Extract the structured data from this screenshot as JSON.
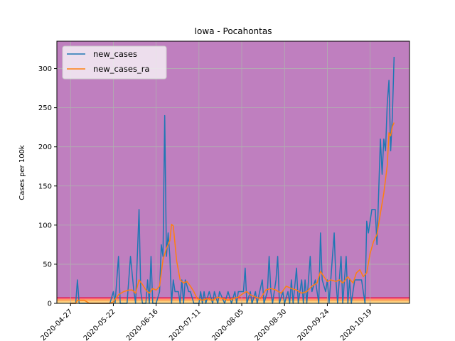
{
  "chart_data": {
    "type": "line",
    "title": "Iowa - Pocahontas",
    "xlabel": "",
    "ylabel": "Cases per 100k",
    "x_tick_labels": [
      "2020-04-27",
      "2020-05-22",
      "2020-06-16",
      "2020-07-11",
      "2020-08-05",
      "2020-08-30",
      "2020-09-24",
      "2020-10-19"
    ],
    "x_start": "2020-04-19",
    "x_end": "2020-11-11",
    "ylim": [
      0,
      335
    ],
    "y_ticks": [
      0,
      50,
      100,
      150,
      200,
      250,
      300
    ],
    "grid": true,
    "legend_position": "top-left",
    "background_color": "#bf7fbf",
    "threshold_bands": [
      {
        "from": 0,
        "to": 1,
        "color": "#ffffaa"
      },
      {
        "from": 1,
        "to": 3,
        "color": "#ffd27f"
      },
      {
        "from": 3,
        "to": 5,
        "color": "#ffaa55"
      },
      {
        "from": 5,
        "to": 7,
        "color": "#ff7f7f"
      }
    ],
    "threshold_line": {
      "value": 7,
      "color": "#e5194c"
    },
    "series": [
      {
        "name": "new_cases",
        "color": "#1f77b4",
        "points": [
          [
            "2020-04-27",
            0
          ],
          [
            "2020-04-30",
            0
          ],
          [
            "2020-05-01",
            30
          ],
          [
            "2020-05-02",
            0
          ],
          [
            "2020-05-05",
            0
          ],
          [
            "2020-05-20",
            0
          ],
          [
            "2020-05-22",
            15
          ],
          [
            "2020-05-23",
            0
          ],
          [
            "2020-05-25",
            60
          ],
          [
            "2020-05-26",
            0
          ],
          [
            "2020-05-30",
            0
          ],
          [
            "2020-06-01",
            60
          ],
          [
            "2020-06-03",
            15
          ],
          [
            "2020-06-04",
            0
          ],
          [
            "2020-06-06",
            120
          ],
          [
            "2020-06-07",
            15
          ],
          [
            "2020-06-08",
            0
          ],
          [
            "2020-06-10",
            0
          ],
          [
            "2020-06-11",
            30
          ],
          [
            "2020-06-12",
            0
          ],
          [
            "2020-06-13",
            60
          ],
          [
            "2020-06-14",
            0
          ],
          [
            "2020-06-16",
            0
          ],
          [
            "2020-06-18",
            15
          ],
          [
            "2020-06-19",
            75
          ],
          [
            "2020-06-20",
            60
          ],
          [
            "2020-06-21",
            240
          ],
          [
            "2020-06-22",
            60
          ],
          [
            "2020-06-23",
            90
          ],
          [
            "2020-06-24",
            60
          ],
          [
            "2020-06-25",
            0
          ],
          [
            "2020-06-26",
            30
          ],
          [
            "2020-06-27",
            15
          ],
          [
            "2020-06-29",
            15
          ],
          [
            "2020-06-30",
            0
          ],
          [
            "2020-07-01",
            30
          ],
          [
            "2020-07-02",
            0
          ],
          [
            "2020-07-03",
            30
          ],
          [
            "2020-07-05",
            15
          ],
          [
            "2020-07-06",
            15
          ],
          [
            "2020-07-08",
            0
          ],
          [
            "2020-07-11",
            0
          ],
          [
            "2020-07-12",
            15
          ],
          [
            "2020-07-13",
            0
          ],
          [
            "2020-07-14",
            15
          ],
          [
            "2020-07-15",
            0
          ],
          [
            "2020-07-17",
            15
          ],
          [
            "2020-07-19",
            0
          ],
          [
            "2020-07-20",
            15
          ],
          [
            "2020-07-22",
            0
          ],
          [
            "2020-07-23",
            15
          ],
          [
            "2020-07-26",
            0
          ],
          [
            "2020-07-28",
            15
          ],
          [
            "2020-07-30",
            0
          ],
          [
            "2020-08-01",
            15
          ],
          [
            "2020-08-02",
            0
          ],
          [
            "2020-08-03",
            15
          ],
          [
            "2020-08-06",
            15
          ],
          [
            "2020-08-07",
            45
          ],
          [
            "2020-08-08",
            0
          ],
          [
            "2020-08-10",
            15
          ],
          [
            "2020-08-11",
            0
          ],
          [
            "2020-08-13",
            15
          ],
          [
            "2020-08-14",
            0
          ],
          [
            "2020-08-17",
            30
          ],
          [
            "2020-08-18",
            0
          ],
          [
            "2020-08-20",
            15
          ],
          [
            "2020-08-21",
            60
          ],
          [
            "2020-08-22",
            15
          ],
          [
            "2020-08-23",
            0
          ],
          [
            "2020-08-25",
            30
          ],
          [
            "2020-08-26",
            60
          ],
          [
            "2020-08-27",
            0
          ],
          [
            "2020-08-29",
            15
          ],
          [
            "2020-08-30",
            0
          ],
          [
            "2020-09-01",
            15
          ],
          [
            "2020-09-02",
            0
          ],
          [
            "2020-09-03",
            30
          ],
          [
            "2020-09-04",
            0
          ],
          [
            "2020-09-06",
            45
          ],
          [
            "2020-09-07",
            0
          ],
          [
            "2020-09-09",
            30
          ],
          [
            "2020-09-10",
            0
          ],
          [
            "2020-09-11",
            30
          ],
          [
            "2020-09-12",
            0
          ],
          [
            "2020-09-14",
            60
          ],
          [
            "2020-09-15",
            15
          ],
          [
            "2020-09-17",
            30
          ],
          [
            "2020-09-19",
            0
          ],
          [
            "2020-09-20",
            90
          ],
          [
            "2020-09-21",
            30
          ],
          [
            "2020-09-23",
            15
          ],
          [
            "2020-09-24",
            30
          ],
          [
            "2020-09-25",
            0
          ],
          [
            "2020-09-28",
            90
          ],
          [
            "2020-09-29",
            30
          ],
          [
            "2020-09-30",
            0
          ],
          [
            "2020-10-02",
            60
          ],
          [
            "2020-10-03",
            0
          ],
          [
            "2020-10-05",
            60
          ],
          [
            "2020-10-06",
            0
          ],
          [
            "2020-10-07",
            30
          ],
          [
            "2020-10-08",
            0
          ],
          [
            "2020-10-10",
            30
          ],
          [
            "2020-10-12",
            30
          ],
          [
            "2020-10-14",
            30
          ],
          [
            "2020-10-16",
            0
          ],
          [
            "2020-10-17",
            105
          ],
          [
            "2020-10-18",
            90
          ],
          [
            "2020-10-20",
            120
          ],
          [
            "2020-10-22",
            120
          ],
          [
            "2020-10-23",
            75
          ],
          [
            "2020-10-25",
            210
          ],
          [
            "2020-10-26",
            165
          ],
          [
            "2020-10-27",
            210
          ],
          [
            "2020-10-28",
            195
          ],
          [
            "2020-10-29",
            255
          ],
          [
            "2020-10-30",
            285
          ],
          [
            "2020-10-31",
            195
          ],
          [
            "2020-11-01",
            240
          ],
          [
            "2020-11-02",
            315
          ]
        ]
      },
      {
        "name": "new_cases_ra",
        "color": "#ff7f0e",
        "points": [
          [
            "2020-04-27",
            0
          ],
          [
            "2020-04-30",
            0
          ],
          [
            "2020-05-01",
            4
          ],
          [
            "2020-05-05",
            4
          ],
          [
            "2020-05-08",
            0
          ],
          [
            "2020-05-20",
            0
          ],
          [
            "2020-05-22",
            2
          ],
          [
            "2020-05-25",
            11
          ],
          [
            "2020-05-28",
            15
          ],
          [
            "2020-05-31",
            17
          ],
          [
            "2020-06-02",
            17
          ],
          [
            "2020-06-04",
            13
          ],
          [
            "2020-06-06",
            30
          ],
          [
            "2020-06-08",
            24
          ],
          [
            "2020-06-10",
            17
          ],
          [
            "2020-06-12",
            13
          ],
          [
            "2020-06-14",
            19
          ],
          [
            "2020-06-16",
            17
          ],
          [
            "2020-06-18",
            22
          ],
          [
            "2020-06-20",
            56
          ],
          [
            "2020-06-22",
            70
          ],
          [
            "2020-06-24",
            80
          ],
          [
            "2020-06-25",
            101
          ],
          [
            "2020-06-26",
            99
          ],
          [
            "2020-06-28",
            54
          ],
          [
            "2020-06-30",
            30
          ],
          [
            "2020-07-02",
            26
          ],
          [
            "2020-07-04",
            28
          ],
          [
            "2020-07-06",
            22
          ],
          [
            "2020-07-08",
            15
          ],
          [
            "2020-07-10",
            6
          ],
          [
            "2020-07-13",
            4
          ],
          [
            "2020-07-16",
            6
          ],
          [
            "2020-07-19",
            4
          ],
          [
            "2020-07-22",
            8
          ],
          [
            "2020-07-25",
            6
          ],
          [
            "2020-07-28",
            4
          ],
          [
            "2020-07-31",
            6
          ],
          [
            "2020-08-03",
            8
          ],
          [
            "2020-08-06",
            13
          ],
          [
            "2020-08-08",
            15
          ],
          [
            "2020-08-10",
            11
          ],
          [
            "2020-08-13",
            8
          ],
          [
            "2020-08-16",
            6
          ],
          [
            "2020-08-19",
            17
          ],
          [
            "2020-08-22",
            19
          ],
          [
            "2020-08-25",
            17
          ],
          [
            "2020-08-28",
            13
          ],
          [
            "2020-08-31",
            22
          ],
          [
            "2020-09-03",
            19
          ],
          [
            "2020-09-06",
            17
          ],
          [
            "2020-09-09",
            13
          ],
          [
            "2020-09-12",
            15
          ],
          [
            "2020-09-15",
            22
          ],
          [
            "2020-09-18",
            26
          ],
          [
            "2020-09-20",
            41
          ],
          [
            "2020-09-22",
            34
          ],
          [
            "2020-09-24",
            28
          ],
          [
            "2020-09-26",
            30
          ],
          [
            "2020-09-29",
            28
          ],
          [
            "2020-10-01",
            30
          ],
          [
            "2020-10-03",
            26
          ],
          [
            "2020-10-06",
            34
          ],
          [
            "2020-10-09",
            26
          ],
          [
            "2020-10-11",
            39
          ],
          [
            "2020-10-13",
            43
          ],
          [
            "2020-10-15",
            34
          ],
          [
            "2020-10-17",
            39
          ],
          [
            "2020-10-19",
            64
          ],
          [
            "2020-10-21",
            79
          ],
          [
            "2020-10-23",
            88
          ],
          [
            "2020-10-25",
            115
          ],
          [
            "2020-10-27",
            141
          ],
          [
            "2020-10-29",
            176
          ],
          [
            "2020-10-30",
            218
          ],
          [
            "2020-10-31",
            214
          ],
          [
            "2020-11-01",
            226
          ],
          [
            "2020-11-02",
            231
          ]
        ]
      }
    ]
  }
}
